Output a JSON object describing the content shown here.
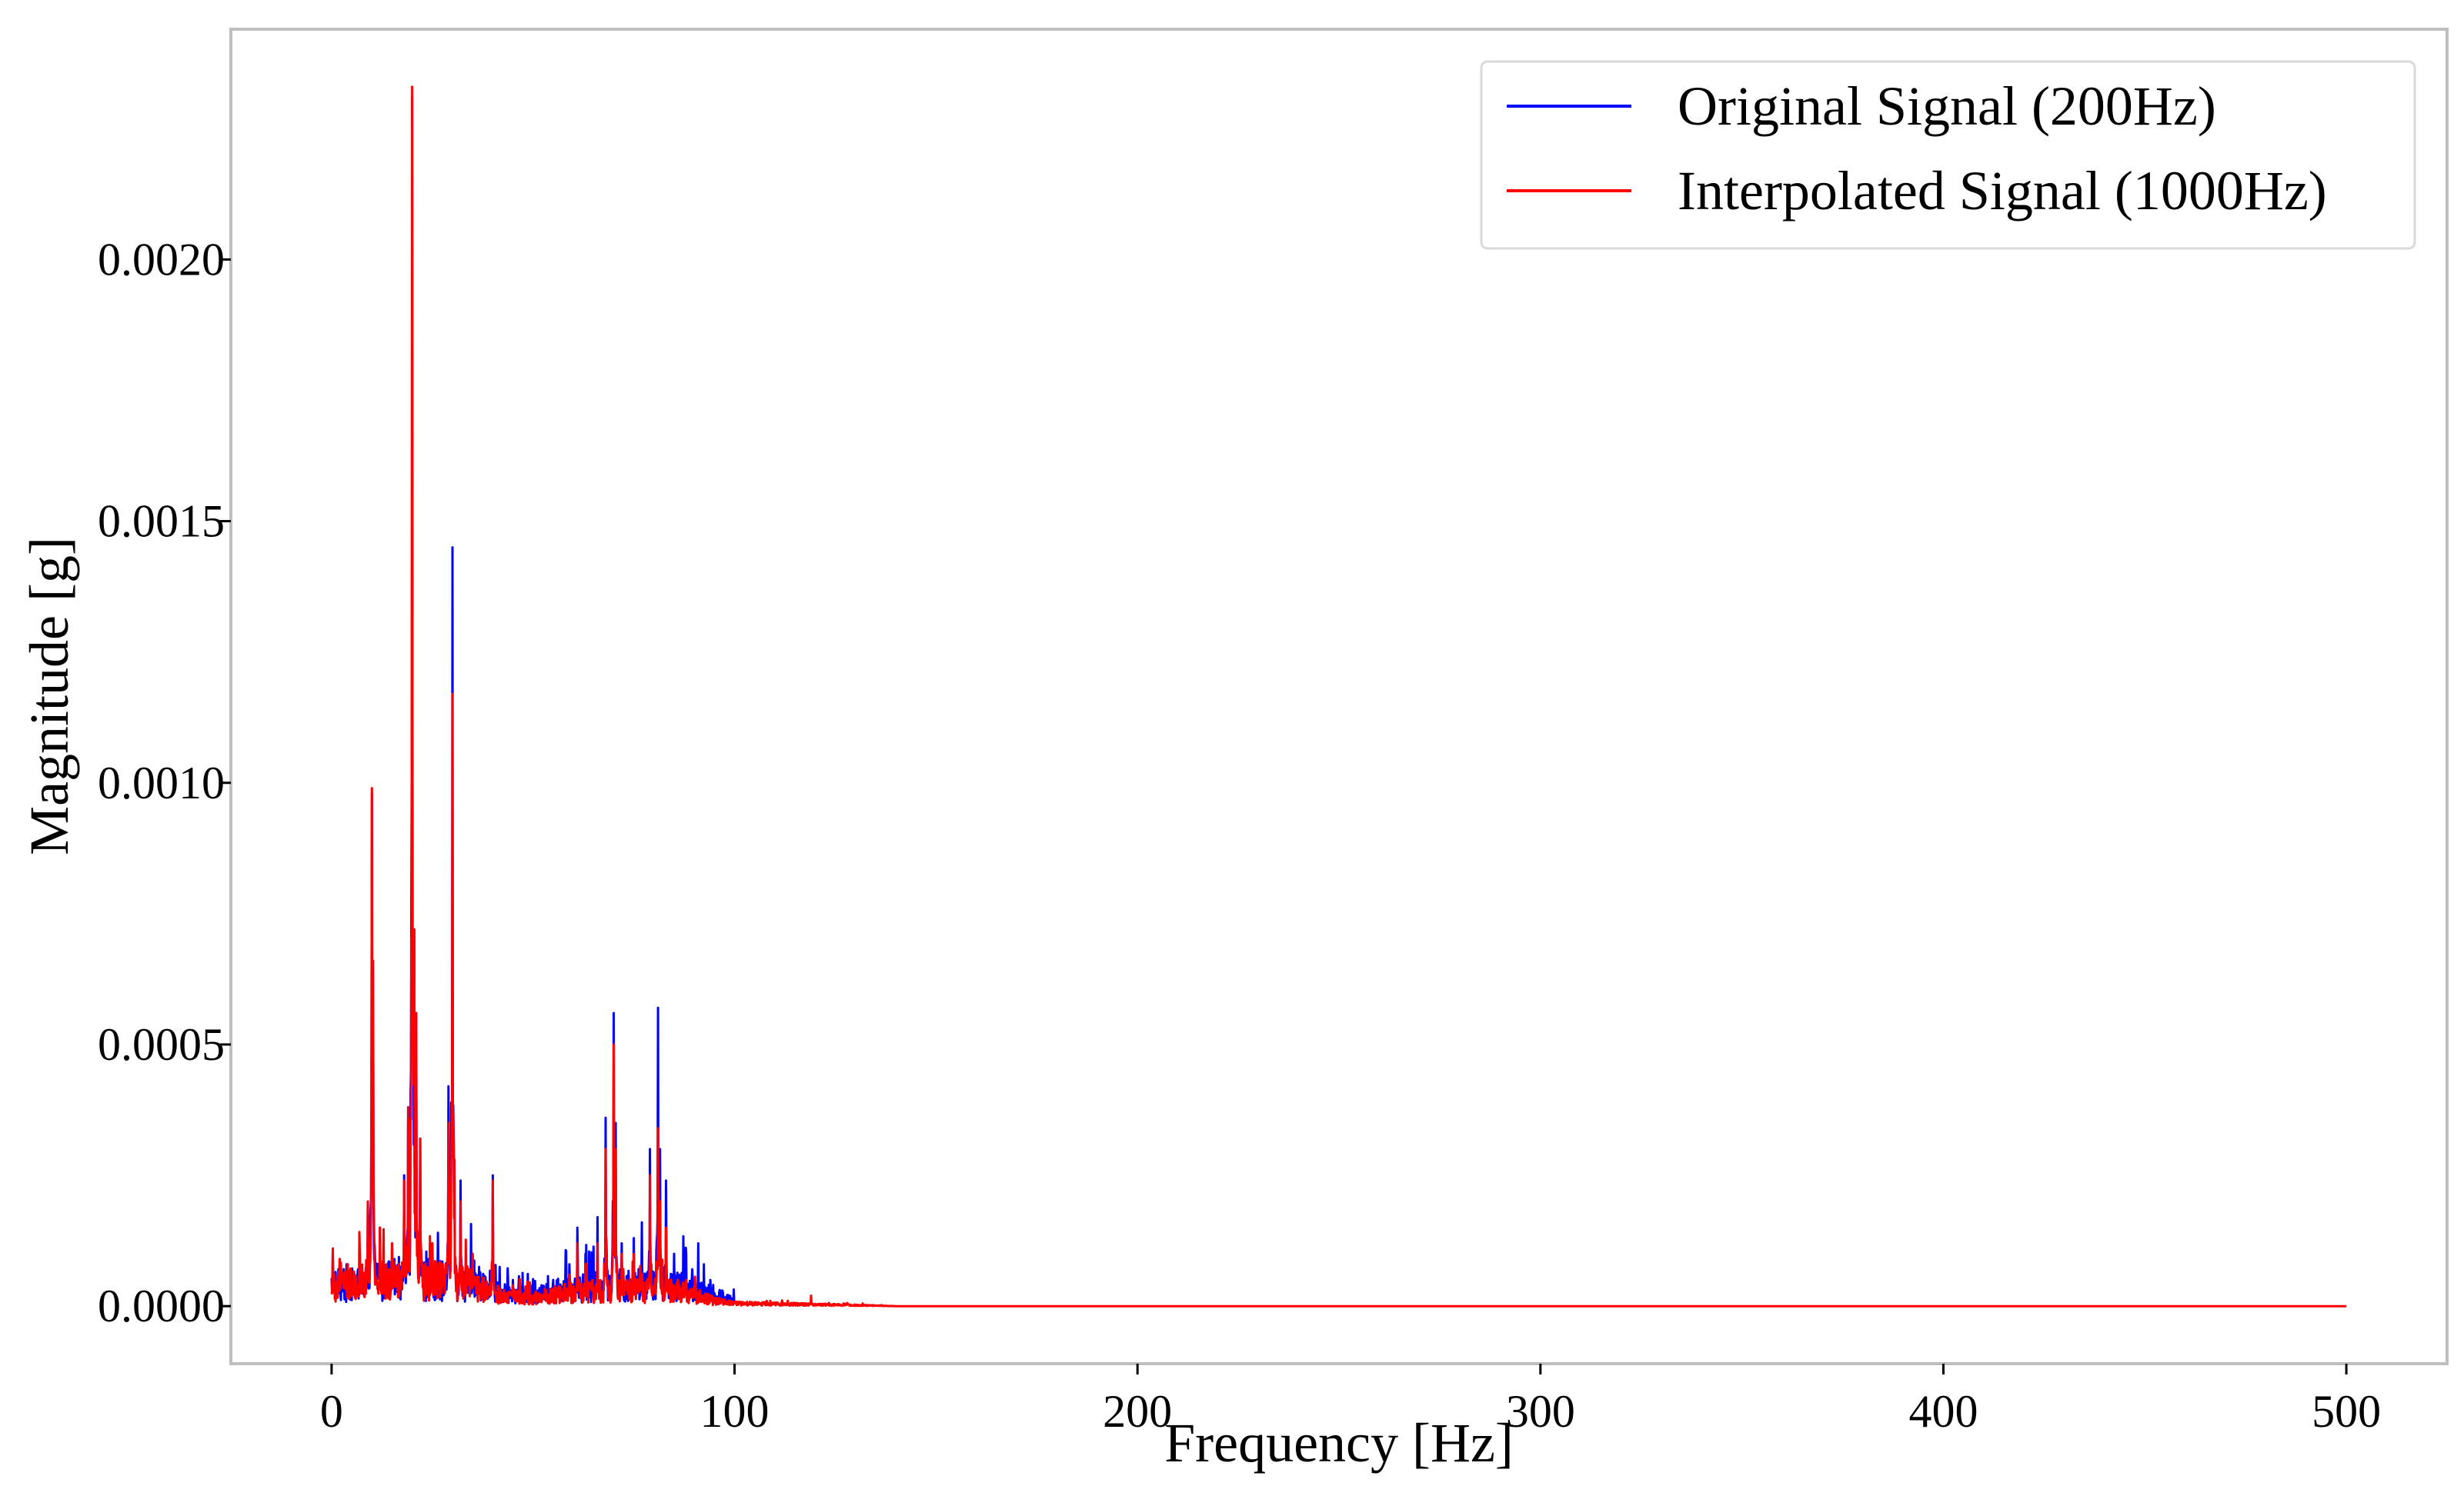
{
  "chart_data": {
    "type": "line",
    "title": "",
    "xlabel": "Frequency [Hz]",
    "ylabel": "Magnitude [g]",
    "xlim": [
      -25,
      525
    ],
    "ylim": [
      -0.00011,
      0.00244
    ],
    "x_ticks": [
      {
        "value": 0,
        "label": "0"
      },
      {
        "value": 100,
        "label": "100"
      },
      {
        "value": 200,
        "label": "200"
      },
      {
        "value": 300,
        "label": "300"
      },
      {
        "value": 400,
        "label": "400"
      },
      {
        "value": 500,
        "label": "500"
      }
    ],
    "y_ticks": [
      {
        "value": 0.0,
        "label": "0.0000"
      },
      {
        "value": 0.0005,
        "label": "0.0005"
      },
      {
        "value": 0.001,
        "label": "0.0010"
      },
      {
        "value": 0.0015,
        "label": "0.0015"
      },
      {
        "value": 0.002,
        "label": "0.0020"
      }
    ],
    "grid": false,
    "legend_position": "top-right",
    "series": [
      {
        "name": "Original Signal (200Hz)",
        "color": "#0000ff",
        "x_range": [
          0,
          100
        ],
        "baseline": [
          [
            0,
            4e-05
          ],
          [
            5,
            4e-05
          ],
          [
            15,
            5e-05
          ],
          [
            25,
            5e-05
          ],
          [
            35,
            4e-05
          ],
          [
            42,
            2.5e-05
          ],
          [
            50,
            2e-05
          ],
          [
            58,
            3e-05
          ],
          [
            70,
            4e-05
          ],
          [
            85,
            4e-05
          ],
          [
            95,
            2e-05
          ],
          [
            100,
            1e-05
          ]
        ],
        "peaks": [
          [
            0.3,
            0.00011
          ],
          [
            2,
            9e-05
          ],
          [
            4,
            8e-05
          ],
          [
            7,
            0.0001
          ],
          [
            9,
            0.0002
          ],
          [
            10,
            0.00098
          ],
          [
            10.3,
            0.00066
          ],
          [
            12,
            0.00015
          ],
          [
            15,
            0.00012
          ],
          [
            18,
            0.00025
          ],
          [
            19,
            0.00038
          ],
          [
            20,
            0.00231
          ],
          [
            20.5,
            0.00072
          ],
          [
            21,
            0.00056
          ],
          [
            22,
            0.00032
          ],
          [
            25,
            0.00012
          ],
          [
            29,
            0.00042
          ],
          [
            30,
            0.00145
          ],
          [
            30.5,
            0.00028
          ],
          [
            32,
            0.00024
          ],
          [
            35,
            0.0001
          ],
          [
            40,
            0.00025
          ],
          [
            45,
            5e-05
          ],
          [
            55,
            5e-05
          ],
          [
            59,
            8e-05
          ],
          [
            61,
            0.00015
          ],
          [
            63,
            0.0001
          ],
          [
            66,
            0.00017
          ],
          [
            68,
            0.00036
          ],
          [
            70,
            0.00056
          ],
          [
            70.5,
            0.00035
          ],
          [
            72,
            0.00012
          ],
          [
            75,
            0.00013
          ],
          [
            77,
            0.00016
          ],
          [
            79,
            0.0003
          ],
          [
            81,
            0.00057
          ],
          [
            81.5,
            0.0003
          ],
          [
            83,
            0.00024
          ],
          [
            85,
            0.0001
          ],
          [
            88,
            0.0001
          ],
          [
            91,
            0.00012
          ],
          [
            94,
            5e-05
          ],
          [
            97,
            3e-05
          ]
        ]
      },
      {
        "name": "Interpolated Signal (1000Hz)",
        "color": "#ff0000",
        "x_range": [
          0,
          500
        ],
        "baseline": [
          [
            0,
            4e-05
          ],
          [
            5,
            4e-05
          ],
          [
            15,
            5e-05
          ],
          [
            25,
            5e-05
          ],
          [
            35,
            4e-05
          ],
          [
            42,
            2e-05
          ],
          [
            50,
            1.5e-05
          ],
          [
            58,
            2.5e-05
          ],
          [
            70,
            3e-05
          ],
          [
            85,
            3e-05
          ],
          [
            95,
            1e-05
          ],
          [
            100,
            5e-06
          ],
          [
            130,
            2e-06
          ],
          [
            140,
            0.0
          ],
          [
            500,
            0.0
          ]
        ],
        "peaks": [
          [
            0.3,
            0.00011
          ],
          [
            2,
            9e-05
          ],
          [
            4,
            8e-05
          ],
          [
            7,
            0.0001
          ],
          [
            9,
            0.0002
          ],
          [
            10,
            0.00099
          ],
          [
            10.3,
            0.00066
          ],
          [
            12,
            0.00015
          ],
          [
            15,
            0.00012
          ],
          [
            18,
            0.00024
          ],
          [
            19,
            0.00038
          ],
          [
            20,
            0.00233
          ],
          [
            20.5,
            0.00072
          ],
          [
            21,
            0.00056
          ],
          [
            22,
            0.00032
          ],
          [
            25,
            0.00012
          ],
          [
            29,
            0.00035
          ],
          [
            30,
            0.00117
          ],
          [
            30.5,
            0.00028
          ],
          [
            32,
            0.0002
          ],
          [
            35,
            0.0001
          ],
          [
            40,
            0.00024
          ],
          [
            45,
            4e-05
          ],
          [
            59,
            6e-05
          ],
          [
            61,
            0.00012
          ],
          [
            63,
            8e-05
          ],
          [
            66,
            0.00012
          ],
          [
            68,
            0.0003
          ],
          [
            70,
            0.0005
          ],
          [
            70.5,
            0.0003
          ],
          [
            72,
            0.0001
          ],
          [
            75,
            0.0001
          ],
          [
            79,
            0.00025
          ],
          [
            81,
            0.00034
          ],
          [
            81.5,
            0.0002
          ],
          [
            83,
            0.00015
          ],
          [
            88,
            5e-05
          ],
          [
            108,
            1e-05
          ],
          [
            119,
            2e-05
          ],
          [
            127,
            5e-06
          ]
        ]
      }
    ]
  }
}
